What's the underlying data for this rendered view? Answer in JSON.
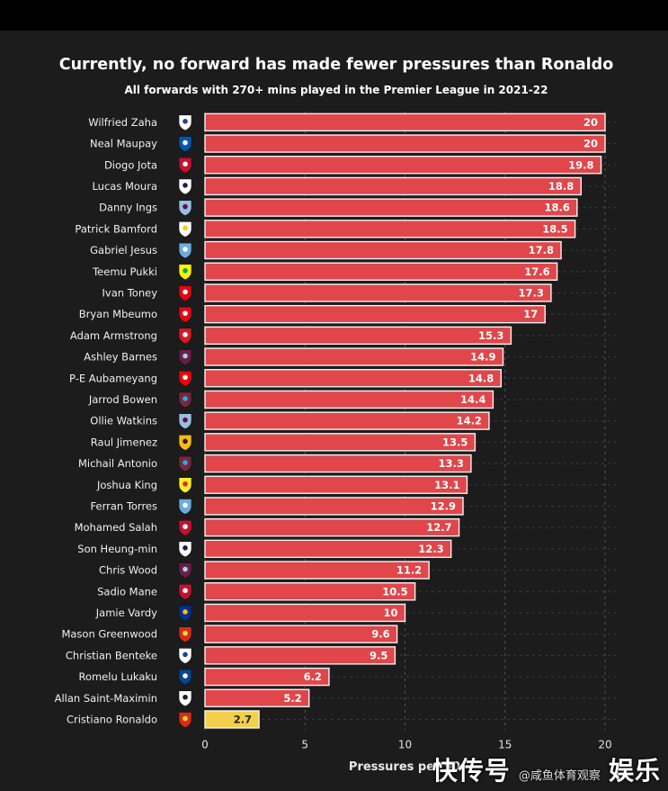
{
  "chart_data": {
    "type": "bar",
    "orientation": "horizontal",
    "title": "Currently, no forward has made fewer pressures than Ronaldo",
    "subtitle": "All forwards with 270+ mins played in the Premier League in 2021-22",
    "xlabel": "Pressures per 90",
    "xlim": [
      0,
      20
    ],
    "xticks": [
      "0",
      "5",
      "10",
      "15",
      "20"
    ],
    "grid": true,
    "categories": [
      "Wilfried Zaha",
      "Neal Maupay",
      "Diogo Jota",
      "Lucas Moura",
      "Danny Ings",
      "Patrick Bamford",
      "Gabriel Jesus",
      "Teemu Pukki",
      "Ivan Toney",
      "Bryan Mbeumo",
      "Adam Armstrong",
      "Ashley Barnes",
      "P-E Aubameyang",
      "Jarrod Bowen",
      "Ollie Watkins",
      "Raul Jimenez",
      "Michail Antonio",
      "Joshua King",
      "Ferran Torres",
      "Mohamed Salah",
      "Son Heung-min",
      "Chris Wood",
      "Sadio Mane",
      "Jamie Vardy",
      "Mason Greenwood",
      "Christian Benteke",
      "Romelu Lukaku",
      "Allan Saint-Maximin",
      "Cristiano Ronaldo"
    ],
    "values": [
      20,
      20,
      19.8,
      18.8,
      18.6,
      18.5,
      17.8,
      17.6,
      17.3,
      17,
      15.3,
      14.9,
      14.8,
      14.4,
      14.2,
      13.5,
      13.3,
      13.1,
      12.9,
      12.7,
      12.3,
      11.2,
      10.5,
      10,
      9.6,
      9.5,
      6.2,
      5.2,
      2.7
    ],
    "value_labels": [
      "20",
      "20",
      "19.8",
      "18.8",
      "18.6",
      "18.5",
      "17.8",
      "17.6",
      "17.3",
      "17",
      "15.3",
      "14.9",
      "14.8",
      "14.4",
      "14.2",
      "13.5",
      "13.3",
      "13.1",
      "12.9",
      "12.7",
      "12.3",
      "11.2",
      "10.5",
      "10",
      "9.6",
      "9.5",
      "6.2",
      "5.2",
      "2.7"
    ],
    "club_badges": [
      "crystal-palace",
      "brighton",
      "liverpool",
      "tottenham",
      "aston-villa",
      "leeds",
      "man-city",
      "norwich",
      "brentford",
      "brentford",
      "southampton",
      "burnley",
      "arsenal",
      "west-ham",
      "aston-villa",
      "wolves",
      "west-ham",
      "watford",
      "man-city",
      "liverpool",
      "tottenham",
      "burnley",
      "liverpool",
      "leicester",
      "man-utd",
      "crystal-palace",
      "chelsea",
      "newcastle",
      "man-utd"
    ],
    "bar_color": "#e0464a",
    "highlight_color": "#f2d04b",
    "highlight_index": 28
  },
  "badge_colors": {
    "crystal-palace": [
      "#ffffff",
      "#1b458f"
    ],
    "brighton": [
      "#0057b8",
      "#ffffff"
    ],
    "liverpool": [
      "#c8102e",
      "#ffffff"
    ],
    "tottenham": [
      "#ffffff",
      "#132257"
    ],
    "aston-villa": [
      "#95bfe5",
      "#670e36"
    ],
    "leeds": [
      "#ffffff",
      "#ffcd00"
    ],
    "man-city": [
      "#6cabdd",
      "#ffffff"
    ],
    "norwich": [
      "#fff200",
      "#00a650"
    ],
    "brentford": [
      "#e30613",
      "#ffffff"
    ],
    "southampton": [
      "#d71920",
      "#ffffff"
    ],
    "burnley": [
      "#6c1d45",
      "#99d6ea"
    ],
    "arsenal": [
      "#ef0107",
      "#ffffff"
    ],
    "west-ham": [
      "#7a263a",
      "#1bb1e7"
    ],
    "wolves": [
      "#fdb913",
      "#231f20"
    ],
    "watford": [
      "#fbee23",
      "#ed2127"
    ],
    "leicester": [
      "#003090",
      "#fdbe11"
    ],
    "man-utd": [
      "#da291c",
      "#fbe122"
    ],
    "chelsea": [
      "#034694",
      "#ffffff"
    ],
    "newcastle": [
      "#ffffff",
      "#241f20"
    ]
  },
  "watermark": {
    "brand_left": "快传号",
    "handle": "@咸鱼体育观察",
    "brand_right": "娱乐"
  }
}
